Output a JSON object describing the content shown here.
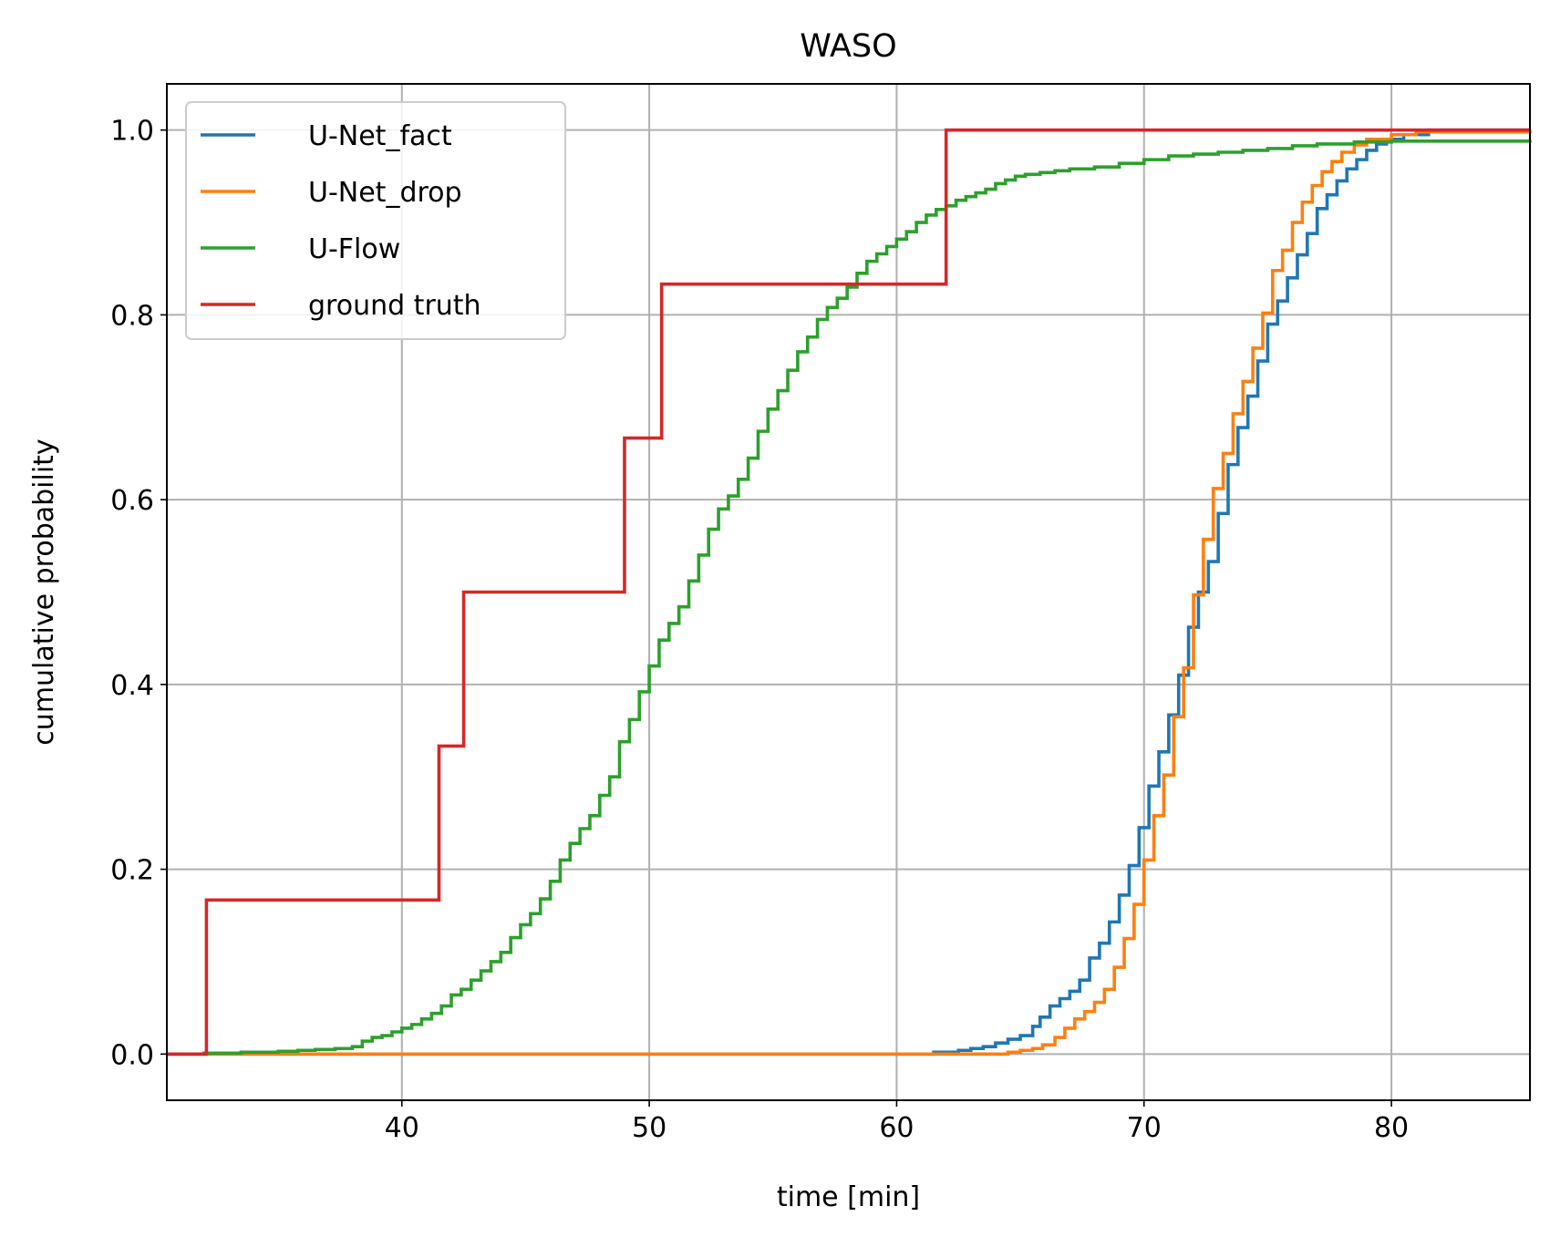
{
  "chart_data": {
    "type": "line",
    "step": true,
    "title": "WASO",
    "xlabel": "time [min]",
    "ylabel": "cumulative probability",
    "xlim": [
      30.5,
      85.6
    ],
    "ylim": [
      -0.05,
      1.05
    ],
    "grid": true,
    "legend_position": "upper-left",
    "x_ticks": [
      {
        "value": 40,
        "label": "40"
      },
      {
        "value": 50,
        "label": "50"
      },
      {
        "value": 60,
        "label": "60"
      },
      {
        "value": 70,
        "label": "70"
      },
      {
        "value": 80,
        "label": "80"
      }
    ],
    "y_ticks": [
      {
        "value": 0.0,
        "label": "0.0"
      },
      {
        "value": 0.2,
        "label": "0.2"
      },
      {
        "value": 0.4,
        "label": "0.4"
      },
      {
        "value": 0.6,
        "label": "0.6"
      },
      {
        "value": 0.8,
        "label": "0.8"
      },
      {
        "value": 1.0,
        "label": "1.0"
      }
    ],
    "series": [
      {
        "name": "U-Net_fact",
        "color": "#1f77b4",
        "points": [
          [
            30.5,
            0.0
          ],
          [
            60.5,
            0.0
          ],
          [
            61.5,
            0.002
          ],
          [
            62.5,
            0.004
          ],
          [
            63.0,
            0.006
          ],
          [
            63.5,
            0.008
          ],
          [
            64.0,
            0.012
          ],
          [
            64.5,
            0.016
          ],
          [
            65.0,
            0.02
          ],
          [
            65.5,
            0.03
          ],
          [
            65.8,
            0.04
          ],
          [
            66.2,
            0.052
          ],
          [
            66.6,
            0.06
          ],
          [
            67.0,
            0.068
          ],
          [
            67.4,
            0.08
          ],
          [
            67.8,
            0.104
          ],
          [
            68.2,
            0.12
          ],
          [
            68.6,
            0.143
          ],
          [
            69.0,
            0.172
          ],
          [
            69.4,
            0.204
          ],
          [
            69.8,
            0.245
          ],
          [
            70.2,
            0.29
          ],
          [
            70.6,
            0.327
          ],
          [
            71.0,
            0.367
          ],
          [
            71.4,
            0.41
          ],
          [
            71.8,
            0.462
          ],
          [
            72.2,
            0.5
          ],
          [
            72.6,
            0.533
          ],
          [
            73.0,
            0.585
          ],
          [
            73.4,
            0.638
          ],
          [
            73.8,
            0.678
          ],
          [
            74.2,
            0.712
          ],
          [
            74.6,
            0.75
          ],
          [
            75.0,
            0.79
          ],
          [
            75.4,
            0.815
          ],
          [
            75.8,
            0.84
          ],
          [
            76.2,
            0.865
          ],
          [
            76.6,
            0.888
          ],
          [
            77.0,
            0.915
          ],
          [
            77.4,
            0.93
          ],
          [
            77.8,
            0.945
          ],
          [
            78.2,
            0.958
          ],
          [
            78.6,
            0.968
          ],
          [
            79.0,
            0.978
          ],
          [
            79.4,
            0.985
          ],
          [
            79.8,
            0.99
          ],
          [
            80.5,
            0.995
          ],
          [
            81.5,
            1.0
          ],
          [
            85.6,
            1.0
          ]
        ]
      },
      {
        "name": "U-Net_drop",
        "color": "#ff7f0e",
        "points": [
          [
            30.5,
            0.0
          ],
          [
            63.5,
            0.0
          ],
          [
            64.5,
            0.002
          ],
          [
            65.0,
            0.004
          ],
          [
            65.5,
            0.006
          ],
          [
            65.9,
            0.01
          ],
          [
            66.4,
            0.018
          ],
          [
            66.8,
            0.028
          ],
          [
            67.2,
            0.038
          ],
          [
            67.6,
            0.046
          ],
          [
            68.0,
            0.056
          ],
          [
            68.4,
            0.07
          ],
          [
            68.8,
            0.094
          ],
          [
            69.2,
            0.125
          ],
          [
            69.6,
            0.162
          ],
          [
            70.0,
            0.21
          ],
          [
            70.4,
            0.258
          ],
          [
            70.8,
            0.302
          ],
          [
            71.2,
            0.365
          ],
          [
            71.6,
            0.418
          ],
          [
            72.0,
            0.497
          ],
          [
            72.4,
            0.557
          ],
          [
            72.8,
            0.612
          ],
          [
            73.2,
            0.65
          ],
          [
            73.6,
            0.693
          ],
          [
            74.0,
            0.728
          ],
          [
            74.4,
            0.764
          ],
          [
            74.8,
            0.802
          ],
          [
            75.2,
            0.848
          ],
          [
            75.6,
            0.87
          ],
          [
            76.0,
            0.9
          ],
          [
            76.4,
            0.922
          ],
          [
            76.8,
            0.94
          ],
          [
            77.2,
            0.955
          ],
          [
            77.6,
            0.966
          ],
          [
            78.0,
            0.976
          ],
          [
            78.5,
            0.984
          ],
          [
            79.0,
            0.99
          ],
          [
            80.0,
            0.995
          ],
          [
            81.0,
            0.998
          ],
          [
            85.6,
            1.0
          ]
        ]
      },
      {
        "name": "U-Flow",
        "color": "#2ca02c",
        "points": [
          [
            30.5,
            0.0
          ],
          [
            32.0,
            0.001
          ],
          [
            33.5,
            0.002
          ],
          [
            35.0,
            0.003
          ],
          [
            35.8,
            0.004
          ],
          [
            36.5,
            0.005
          ],
          [
            37.3,
            0.006
          ],
          [
            38.0,
            0.008
          ],
          [
            38.4,
            0.014
          ],
          [
            38.8,
            0.018
          ],
          [
            39.2,
            0.02
          ],
          [
            39.6,
            0.024
          ],
          [
            40.0,
            0.028
          ],
          [
            40.4,
            0.032
          ],
          [
            40.8,
            0.038
          ],
          [
            41.2,
            0.044
          ],
          [
            41.6,
            0.052
          ],
          [
            42.0,
            0.064
          ],
          [
            42.4,
            0.07
          ],
          [
            42.8,
            0.08
          ],
          [
            43.2,
            0.09
          ],
          [
            43.6,
            0.1
          ],
          [
            44.0,
            0.11
          ],
          [
            44.4,
            0.126
          ],
          [
            44.8,
            0.14
          ],
          [
            45.2,
            0.152
          ],
          [
            45.6,
            0.168
          ],
          [
            46.0,
            0.187
          ],
          [
            46.4,
            0.21
          ],
          [
            46.8,
            0.228
          ],
          [
            47.2,
            0.244
          ],
          [
            47.6,
            0.258
          ],
          [
            48.0,
            0.28
          ],
          [
            48.4,
            0.3
          ],
          [
            48.8,
            0.338
          ],
          [
            49.2,
            0.362
          ],
          [
            49.6,
            0.392
          ],
          [
            50.0,
            0.42
          ],
          [
            50.4,
            0.448
          ],
          [
            50.8,
            0.466
          ],
          [
            51.2,
            0.484
          ],
          [
            51.6,
            0.512
          ],
          [
            52.0,
            0.54
          ],
          [
            52.4,
            0.568
          ],
          [
            52.8,
            0.59
          ],
          [
            53.2,
            0.604
          ],
          [
            53.6,
            0.622
          ],
          [
            54.0,
            0.645
          ],
          [
            54.4,
            0.674
          ],
          [
            54.8,
            0.698
          ],
          [
            55.2,
            0.718
          ],
          [
            55.6,
            0.74
          ],
          [
            56.0,
            0.76
          ],
          [
            56.4,
            0.776
          ],
          [
            56.8,
            0.795
          ],
          [
            57.2,
            0.808
          ],
          [
            57.6,
            0.818
          ],
          [
            58.0,
            0.83
          ],
          [
            58.4,
            0.845
          ],
          [
            58.8,
            0.858
          ],
          [
            59.2,
            0.866
          ],
          [
            59.6,
            0.874
          ],
          [
            60.0,
            0.882
          ],
          [
            60.4,
            0.89
          ],
          [
            60.8,
            0.9
          ],
          [
            61.2,
            0.908
          ],
          [
            61.6,
            0.914
          ],
          [
            62.0,
            0.918
          ],
          [
            62.4,
            0.924
          ],
          [
            62.8,
            0.928
          ],
          [
            63.2,
            0.932
          ],
          [
            63.6,
            0.936
          ],
          [
            64.0,
            0.942
          ],
          [
            64.4,
            0.946
          ],
          [
            64.8,
            0.95
          ],
          [
            65.2,
            0.952
          ],
          [
            65.8,
            0.954
          ],
          [
            66.4,
            0.956
          ],
          [
            67.0,
            0.958
          ],
          [
            68.0,
            0.96
          ],
          [
            69.0,
            0.964
          ],
          [
            70.0,
            0.968
          ],
          [
            71.0,
            0.972
          ],
          [
            72.0,
            0.974
          ],
          [
            73.0,
            0.976
          ],
          [
            74.0,
            0.978
          ],
          [
            75.0,
            0.98
          ],
          [
            76.0,
            0.983
          ],
          [
            77.0,
            0.985
          ],
          [
            78.5,
            0.987
          ],
          [
            80.0,
            0.988
          ],
          [
            85.6,
            0.989
          ]
        ]
      },
      {
        "name": "ground truth",
        "color": "#d62728",
        "points": [
          [
            30.5,
            0.0
          ],
          [
            32.1,
            0.1667
          ],
          [
            41.5,
            0.3333
          ],
          [
            42.5,
            0.5
          ],
          [
            49.0,
            0.6667
          ],
          [
            50.5,
            0.8333
          ],
          [
            62.0,
            1.0
          ],
          [
            85.6,
            1.0
          ]
        ]
      }
    ]
  }
}
